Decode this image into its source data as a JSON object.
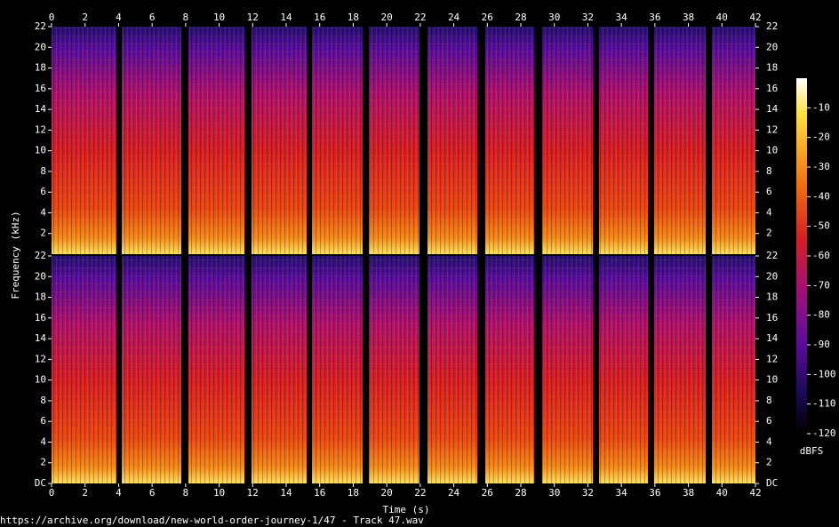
{
  "chart_data": {
    "type": "spectrogram",
    "xlabel": "Time (s)",
    "ylabel": "Frequency (kHz)",
    "source": "https://archive.org/download/new-world-order-journey-1/47 - Track 47.wav",
    "xlim": [
      0,
      42
    ],
    "xticks": [
      0,
      2,
      4,
      6,
      8,
      10,
      12,
      14,
      16,
      18,
      20,
      22,
      24,
      26,
      28,
      30,
      32,
      34,
      36,
      38,
      40,
      42
    ],
    "segments": [
      [
        0,
        3.87
      ],
      [
        4.19,
        7.74
      ],
      [
        8.17,
        11.51
      ],
      [
        11.93,
        15.22
      ],
      [
        15.54,
        18.56
      ],
      [
        18.93,
        21.95
      ],
      [
        22.43,
        25.4
      ],
      [
        25.88,
        28.8
      ],
      [
        29.27,
        32.3
      ],
      [
        32.67,
        35.58
      ],
      [
        35.95,
        39.03
      ],
      [
        39.4,
        42
      ]
    ],
    "panels": [
      {
        "ylim": [
          0,
          22
        ],
        "yticks": [
          2,
          4,
          6,
          8,
          10,
          12,
          14,
          16,
          18,
          20,
          22
        ]
      },
      {
        "ylim": [
          0,
          22
        ],
        "yticks": [
          {
            "value": 0,
            "label": "DC"
          },
          2,
          4,
          6,
          8,
          10,
          12,
          14,
          16,
          18,
          20,
          22
        ]
      }
    ],
    "colorbar": {
      "label": "dBFS",
      "lim": [
        -120,
        0
      ],
      "ticks": [
        -10,
        -20,
        -30,
        -40,
        -50,
        -60,
        -70,
        -80,
        -90,
        -100,
        -110,
        -120
      ]
    }
  }
}
